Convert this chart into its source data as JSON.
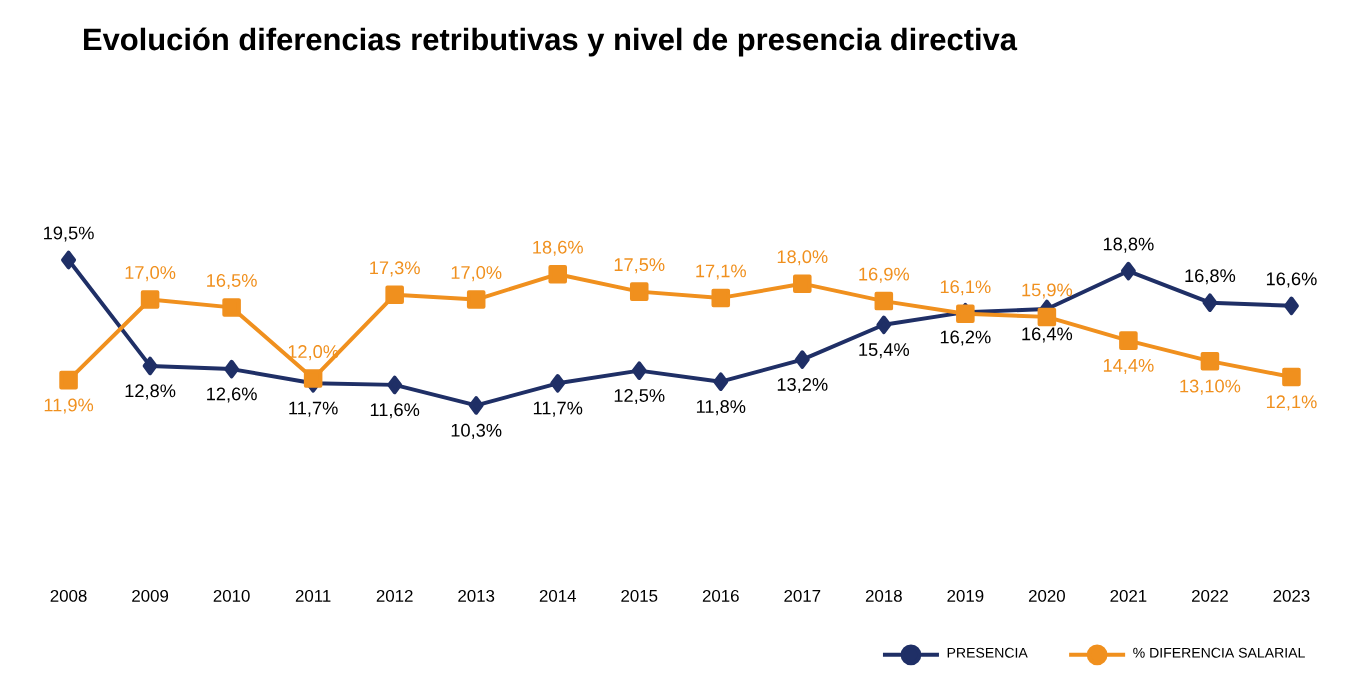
{
  "chart_data": {
    "type": "line",
    "title": "Evolución diferencias retributivas y nivel de presencia directiva",
    "categories": [
      "2008",
      "2009",
      "2010",
      "2011",
      "2012",
      "2013",
      "2014",
      "2015",
      "2016",
      "2017",
      "2018",
      "2019",
      "2020",
      "2021",
      "2022",
      "2023"
    ],
    "series": [
      {
        "name": "PRESENCIA",
        "color": "#1f2f66",
        "marker": "diamond",
        "values": [
          19.5,
          12.8,
          12.6,
          11.7,
          11.6,
          10.3,
          11.7,
          12.5,
          11.8,
          13.2,
          15.4,
          16.2,
          16.4,
          18.8,
          16.8,
          16.6
        ],
        "value_labels": [
          "19,5%",
          "12,8%",
          "12,6%",
          "11,7%",
          "11,6%",
          "10,3%",
          "11,7%",
          "12,5%",
          "11,8%",
          "13,2%",
          "15,4%",
          "16,2%",
          "16,4%",
          "18,8%",
          "16,8%",
          "16,6%"
        ]
      },
      {
        "name": "% DIFERENCIA SALARIAL",
        "color": "#f0901e",
        "marker": "square",
        "values": [
          11.9,
          17.0,
          16.5,
          12.0,
          17.3,
          17.0,
          18.6,
          17.5,
          17.1,
          18.0,
          16.9,
          16.1,
          15.9,
          14.4,
          13.1,
          12.1
        ],
        "value_labels": [
          "11,9%",
          "17,0%",
          "16,5%",
          "12,0%",
          "17,3%",
          "17,0%",
          "18,6%",
          "17,5%",
          "17,1%",
          "18,0%",
          "16,9%",
          "16,1%",
          "15,9%",
          "14,4%",
          "13,10%",
          "12,1%"
        ]
      }
    ],
    "legend": "bottom right",
    "tick_labels": "x",
    "line_style": "solid"
  }
}
